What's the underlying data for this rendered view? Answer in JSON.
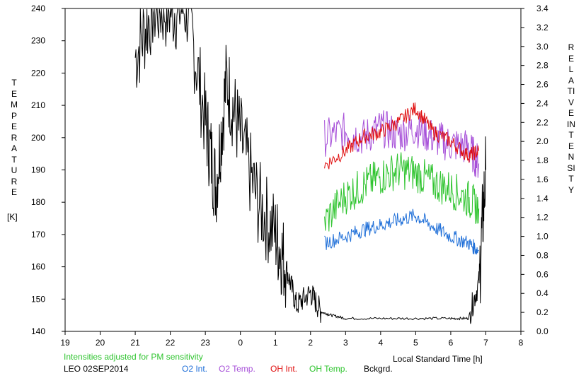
{
  "chart_data": {
    "type": "line",
    "y_left_label": "TEMPERATURE",
    "y_left_unit": "[K]",
    "y_right_label": "RELATIVE INTENSITY",
    "xlabel": "Local Standard Time [h]",
    "x_ticks": [
      "19",
      "20",
      "21",
      "22",
      "23",
      "0",
      "1",
      "2",
      "3",
      "4",
      "5",
      "6",
      "7",
      "8"
    ],
    "x_range_hours_after_19": [
      0,
      13
    ],
    "y_left_ticks": [
      140,
      150,
      160,
      170,
      180,
      190,
      200,
      210,
      220,
      230,
      240
    ],
    "y_left_range": [
      140,
      240
    ],
    "y_right_ticks": [
      "0.0",
      "0.2",
      "0.4",
      "0.6",
      "0.8",
      "1.0",
      "1.2",
      "1.4",
      "1.6",
      "1.8",
      "2.0",
      "2.2",
      "2.4",
      "2.6",
      "2.8",
      "3.0",
      "3.2",
      "3.4"
    ],
    "y_right_range": [
      0,
      3.4
    ],
    "note": "Intensities adjusted for PM sensitivity",
    "site": "LEO 02SEP2014",
    "legend": [
      {
        "name": "O2 Int.",
        "color": "#1f6fd8"
      },
      {
        "name": "O2 Temp.",
        "color": "#a64fd8"
      },
      {
        "name": "OH Int.",
        "color": "#e01010"
      },
      {
        "name": "OH Temp.",
        "color": "#2fc42f"
      },
      {
        "name": "Bckgrd.",
        "color": "#000000"
      }
    ],
    "series": [
      {
        "name": "Bckgrd.",
        "axis": "left",
        "color": "#000000",
        "x": [
          "21.0",
          "21.5",
          "22.0",
          "22.5",
          "23.0",
          "23.3",
          "23.6",
          "0.0",
          "0.5",
          "1.0",
          "1.3",
          "1.6",
          "2.0",
          "2.3",
          "2.6",
          "3.0",
          "4.0",
          "5.0",
          "6.0",
          "6.5",
          "6.8",
          "7.0"
        ],
        "y": [
          225,
          240,
          240,
          240,
          205,
          185,
          218,
          200,
          180,
          170,
          160,
          148,
          152,
          146,
          145,
          144,
          144,
          144,
          144,
          144,
          155,
          190
        ]
      },
      {
        "name": "O2 Temp.",
        "axis": "left",
        "color": "#a64fd8",
        "x": [
          "2.4",
          "3.0",
          "3.5",
          "4.0",
          "4.5",
          "5.0",
          "5.5",
          "6.0",
          "6.5",
          "6.8"
        ],
        "y": [
          200,
          202,
          200,
          203,
          201,
          203,
          200,
          198,
          197,
          192
        ]
      },
      {
        "name": "OH Int.",
        "axis": "right",
        "color": "#e01010",
        "x": [
          "2.4",
          "3.0",
          "3.5",
          "4.0",
          "4.5",
          "5.0",
          "5.5",
          "6.0",
          "6.5",
          "6.8"
        ],
        "y": [
          1.75,
          1.9,
          2.05,
          2.1,
          2.2,
          2.35,
          2.1,
          2.0,
          1.85,
          1.9
        ]
      },
      {
        "name": "OH Temp.",
        "axis": "left",
        "color": "#2fc42f",
        "x": [
          "2.4",
          "3.0",
          "3.5",
          "4.0",
          "4.5",
          "5.0",
          "5.5",
          "6.0",
          "6.5",
          "6.8"
        ],
        "y": [
          174,
          182,
          185,
          188,
          190,
          189,
          186,
          184,
          181,
          178
        ]
      },
      {
        "name": "O2 Int.",
        "axis": "right",
        "color": "#1f6fd8",
        "x": [
          "2.4",
          "3.0",
          "3.5",
          "4.0",
          "4.5",
          "5.0",
          "5.5",
          "6.0",
          "6.5",
          "6.8"
        ],
        "y": [
          0.93,
          1.0,
          1.07,
          1.12,
          1.17,
          1.22,
          1.1,
          1.0,
          0.93,
          0.85
        ]
      }
    ]
  }
}
